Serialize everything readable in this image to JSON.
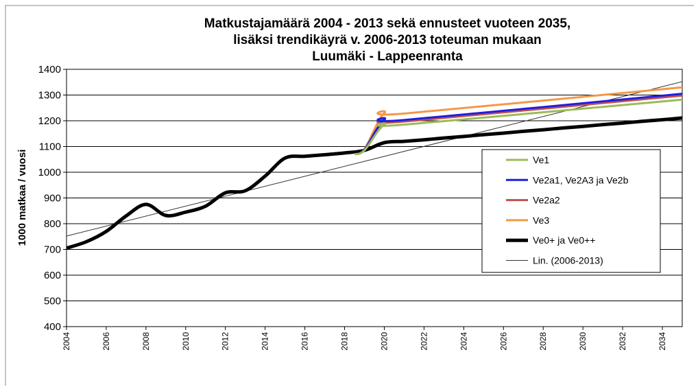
{
  "chart_data": {
    "type": "line",
    "title": [
      "Matkustajamäärä 2004 - 2013 sekä ennusteet vuoteen 2035,",
      "lisäksi trendikäyrä v. 2006-2013 toteuman mukaan",
      "Luumäki - Lappeenranta"
    ],
    "y_label": "1000 matkaa / vuosi",
    "xlim": [
      2004,
      2035
    ],
    "xticks": [
      2004,
      2006,
      2008,
      2010,
      2012,
      2014,
      2016,
      2018,
      2020,
      2022,
      2024,
      2026,
      2028,
      2030,
      2032,
      2034
    ],
    "ylim": [
      400,
      1400
    ],
    "yticks": [
      400,
      500,
      600,
      700,
      800,
      900,
      1000,
      1100,
      1200,
      1300,
      1400
    ],
    "grid": true,
    "series": [
      {
        "name": "Ve1",
        "color": "#9bbb59",
        "width": 3,
        "x": [
          2018.5,
          2019,
          2020,
          2021,
          2035
        ],
        "values": [
          1070,
          1085,
          1185,
          1185,
          1282
        ]
      },
      {
        "name": "Ve2a1, Ve2A3 ja Ve2b",
        "color": "#1f1fe0",
        "width": 3,
        "x": [
          2018.5,
          2019,
          2020,
          2021,
          2035
        ],
        "values": [
          1070,
          1088,
          1205,
          1203,
          1305
        ]
      },
      {
        "name": "Ve2a2",
        "color": "#c0504d",
        "width": 3,
        "x": [
          2018.5,
          2019,
          2020,
          2021,
          2035
        ],
        "values": [
          1070,
          1087,
          1198,
          1197,
          1298
        ]
      },
      {
        "name": "Ve3",
        "color": "#f79646",
        "width": 3,
        "x": [
          2018.5,
          2019,
          2020,
          2021,
          2035
        ],
        "values": [
          1070,
          1090,
          1230,
          1228,
          1330
        ]
      },
      {
        "name": "Ve0+ ja Ve0++",
        "color": "#000000",
        "width": 5,
        "x": [
          2004,
          2005,
          2006,
          2007,
          2008,
          2009,
          2010,
          2011,
          2012,
          2013,
          2014,
          2015,
          2016,
          2017,
          2018,
          2019,
          2020,
          2021,
          2022,
          2023,
          2024,
          2025,
          2026,
          2027,
          2028,
          2029,
          2030,
          2031,
          2032,
          2033,
          2034,
          2035
        ],
        "values": [
          705,
          730,
          770,
          830,
          875,
          832,
          845,
          868,
          920,
          928,
          985,
          1055,
          1062,
          1068,
          1075,
          1085,
          1115,
          1120,
          1126,
          1133,
          1139,
          1146,
          1152,
          1159,
          1165,
          1172,
          1178,
          1185,
          1191,
          1198,
          1204,
          1211
        ]
      },
      {
        "name": "Lin. (2006-2013)",
        "color": "#333333",
        "width": 1,
        "x": [
          2004,
          2035
        ],
        "values": [
          752,
          1352
        ]
      }
    ]
  }
}
